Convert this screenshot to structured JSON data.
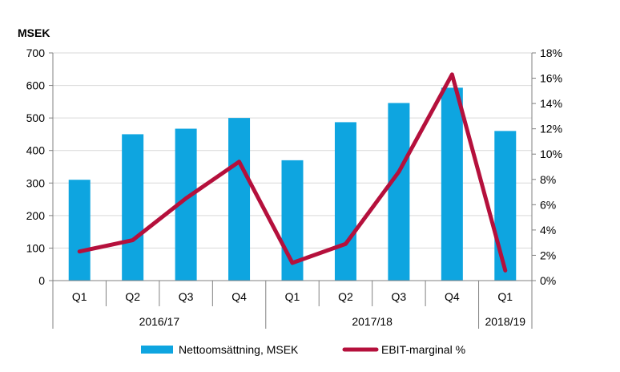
{
  "chart_data": {
    "type": "bar",
    "y_unit_label": "MSEK",
    "categories": [
      "Q1",
      "Q2",
      "Q3",
      "Q4",
      "Q1",
      "Q2",
      "Q3",
      "Q4",
      "Q1"
    ],
    "groups": [
      {
        "label": "2016/17",
        "count": 4
      },
      {
        "label": "2017/18",
        "count": 4
      },
      {
        "label": "2018/19",
        "count": 1
      }
    ],
    "series": [
      {
        "name": "Nettoomsättning, MSEK",
        "type": "bar",
        "axis": "left",
        "color": "#0ea5e0",
        "values": [
          310,
          450,
          467,
          500,
          370,
          487,
          546,
          593,
          460
        ]
      },
      {
        "name": "EBIT-marginal %",
        "type": "line",
        "axis": "right",
        "color": "#b5103c",
        "values": [
          2.3,
          3.2,
          6.5,
          9.4,
          1.4,
          2.9,
          8.6,
          16.3,
          0.8
        ]
      }
    ],
    "y_left": {
      "min": 0,
      "max": 700,
      "step": 100,
      "ticks": [
        "0",
        "100",
        "200",
        "300",
        "400",
        "500",
        "600",
        "700"
      ]
    },
    "y_right": {
      "min": 0,
      "max": 18,
      "step": 2,
      "ticks": [
        "0%",
        "2%",
        "4%",
        "6%",
        "8%",
        "10%",
        "12%",
        "14%",
        "16%",
        "18%"
      ]
    },
    "grid": true,
    "legend": "bottom"
  }
}
